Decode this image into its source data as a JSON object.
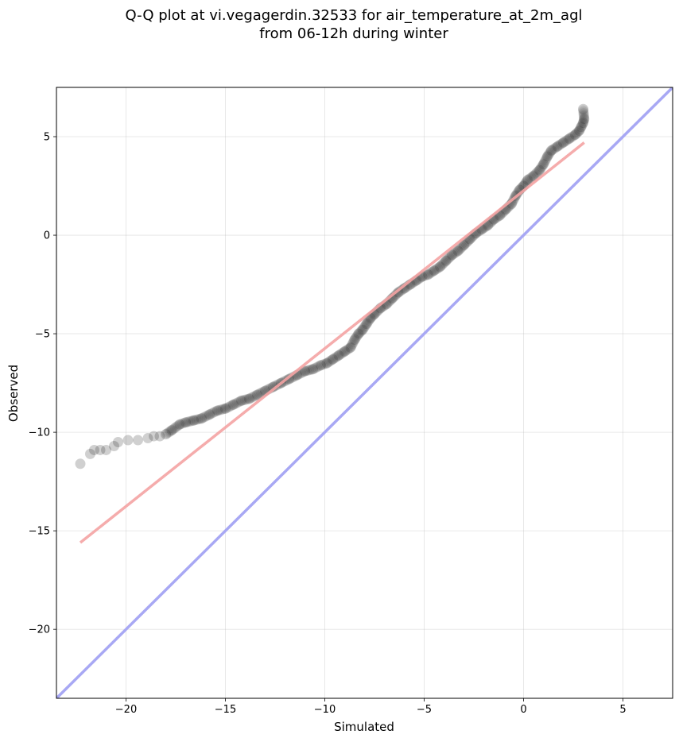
{
  "chart_data": {
    "type": "scatter",
    "title": "Q-Q plot at vi.vegagerdin.32533 for air_temperature_at_2m_agl",
    "subtitle": "from 06-12h during winter",
    "xlabel": "Simulated",
    "ylabel": "Observed",
    "xlim": [
      -23.5,
      7.5
    ],
    "ylim": [
      -23.5,
      7.5
    ],
    "xticks": [
      -20,
      -15,
      -10,
      -5,
      0,
      5
    ],
    "yticks": [
      -20,
      -15,
      -10,
      -5,
      0,
      5
    ],
    "xtick_labels": [
      "−20",
      "−15",
      "−10",
      "−5",
      "0",
      "5"
    ],
    "ytick_labels": [
      "−20",
      "−15",
      "−10",
      "−5",
      "0",
      "5"
    ],
    "grid": true,
    "quantile_points": [
      [
        -22.3,
        -11.6
      ],
      [
        -21.8,
        -11.1
      ],
      [
        -21.6,
        -10.9
      ],
      [
        -21.3,
        -10.9
      ],
      [
        -21.0,
        -10.9
      ],
      [
        -20.6,
        -10.7
      ],
      [
        -20.4,
        -10.5
      ],
      [
        -19.9,
        -10.4
      ],
      [
        -19.4,
        -10.4
      ],
      [
        -18.9,
        -10.3
      ],
      [
        -18.6,
        -10.2
      ],
      [
        -18.3,
        -10.2
      ],
      [
        -18.0,
        -10.1
      ],
      [
        -17.7,
        -9.9
      ],
      [
        -17.3,
        -9.6
      ],
      [
        -17.0,
        -9.5
      ],
      [
        -16.6,
        -9.4
      ],
      [
        -16.2,
        -9.3
      ],
      [
        -15.8,
        -9.1
      ],
      [
        -15.4,
        -8.9
      ],
      [
        -15.0,
        -8.8
      ],
      [
        -14.6,
        -8.6
      ],
      [
        -14.2,
        -8.4
      ],
      [
        -13.8,
        -8.3
      ],
      [
        -13.4,
        -8.1
      ],
      [
        -13.0,
        -7.9
      ],
      [
        -12.6,
        -7.7
      ],
      [
        -12.2,
        -7.5
      ],
      [
        -11.8,
        -7.3
      ],
      [
        -11.4,
        -7.1
      ],
      [
        -11.0,
        -6.9
      ],
      [
        -10.6,
        -6.8
      ],
      [
        -10.2,
        -6.6
      ],
      [
        -9.9,
        -6.5
      ],
      [
        -9.6,
        -6.3
      ],
      [
        -9.3,
        -6.1
      ],
      [
        -9.0,
        -5.9
      ],
      [
        -8.7,
        -5.7
      ],
      [
        -8.5,
        -5.3
      ],
      [
        -8.3,
        -5.0
      ],
      [
        -8.1,
        -4.8
      ],
      [
        -7.9,
        -4.5
      ],
      [
        -7.7,
        -4.2
      ],
      [
        -7.5,
        -4.0
      ],
      [
        -7.2,
        -3.7
      ],
      [
        -6.9,
        -3.5
      ],
      [
        -6.6,
        -3.2
      ],
      [
        -6.3,
        -2.9
      ],
      [
        -6.0,
        -2.7
      ],
      [
        -5.7,
        -2.5
      ],
      [
        -5.4,
        -2.3
      ],
      [
        -5.1,
        -2.1
      ],
      [
        -4.8,
        -2.0
      ],
      [
        -4.5,
        -1.8
      ],
      [
        -4.2,
        -1.6
      ],
      [
        -3.9,
        -1.3
      ],
      [
        -3.6,
        -1.0
      ],
      [
        -3.3,
        -0.8
      ],
      [
        -3.0,
        -0.5
      ],
      [
        -2.7,
        -0.2
      ],
      [
        -2.4,
        0.1
      ],
      [
        -2.1,
        0.3
      ],
      [
        -1.8,
        0.5
      ],
      [
        -1.5,
        0.8
      ],
      [
        -1.2,
        1.0
      ],
      [
        -0.9,
        1.3
      ],
      [
        -0.6,
        1.6
      ],
      [
        -0.4,
        2.0
      ],
      [
        -0.2,
        2.3
      ],
      [
        0.0,
        2.5
      ],
      [
        0.2,
        2.8
      ],
      [
        0.5,
        3.0
      ],
      [
        0.8,
        3.3
      ],
      [
        1.0,
        3.6
      ],
      [
        1.2,
        4.0
      ],
      [
        1.4,
        4.3
      ],
      [
        1.7,
        4.5
      ],
      [
        2.0,
        4.7
      ],
      [
        2.3,
        4.9
      ],
      [
        2.6,
        5.1
      ],
      [
        2.8,
        5.3
      ],
      [
        2.9,
        5.5
      ],
      [
        3.0,
        5.7
      ],
      [
        3.05,
        5.9
      ],
      [
        3.0,
        6.4
      ]
    ],
    "fit_line": {
      "x": [
        -22.3,
        3.05
      ],
      "y": [
        -15.6,
        4.7
      ],
      "color": "#f4a3a3"
    },
    "reference_line": {
      "x": [
        -23.5,
        7.5
      ],
      "y": [
        -23.5,
        7.5
      ],
      "color": "#a8a8f4"
    },
    "point_color": "#000000"
  }
}
